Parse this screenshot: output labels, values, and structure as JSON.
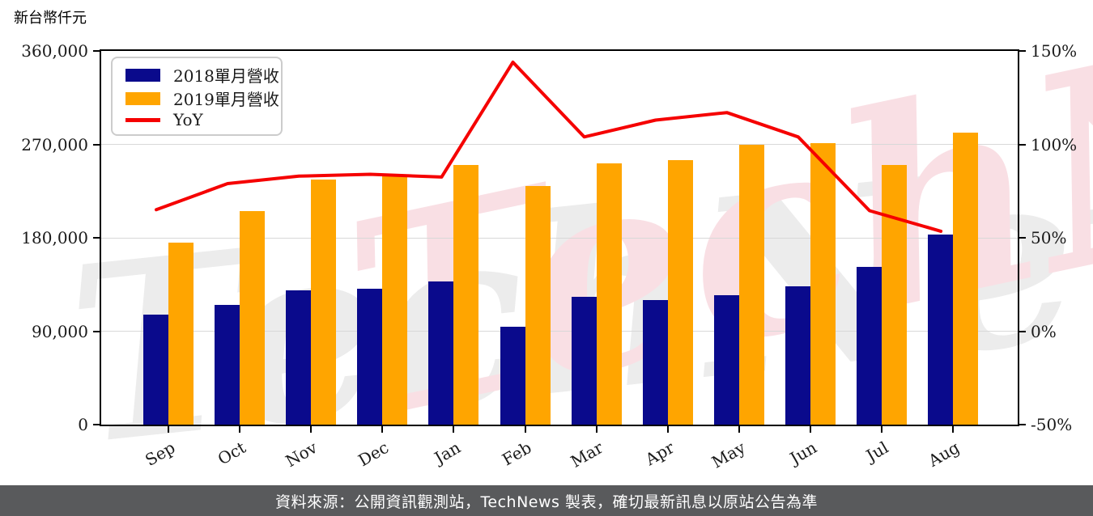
{
  "page": {
    "unit_label": "新台幣仟元",
    "footer": "資料來源：公開資訊觀測站，TechNews 製表，確切最新訊息以原站公告為準",
    "watermarks": [
      {
        "text": "TechNews",
        "color": "#ECECEC"
      },
      {
        "text": "TechNews",
        "color": "#F9DFE4"
      }
    ]
  },
  "chart_data": {
    "type": "bar",
    "title": "新台幣仟元",
    "categories": [
      "Sep",
      "Oct",
      "Nov",
      "Dec",
      "Jan",
      "Feb",
      "Mar",
      "Apr",
      "May",
      "Jun",
      "Jul",
      "Aug"
    ],
    "series": [
      {
        "key": "2018",
        "name": "2018單月營收",
        "type": "bar",
        "axis": "left",
        "color": "#0A0A8C",
        "values": [
          106000,
          115000,
          129500,
          131000,
          138000,
          94500,
          123500,
          120000,
          125000,
          133500,
          152000,
          183500
        ]
      },
      {
        "key": "2019",
        "name": "2019單月營收",
        "type": "bar",
        "axis": "left",
        "color": "#FFA500",
        "values": [
          175000,
          206000,
          236000,
          240500,
          250000,
          230000,
          252000,
          254500,
          270000,
          271500,
          250000,
          281500
        ]
      },
      {
        "key": "yoy",
        "name": "YoY",
        "type": "line",
        "axis": "right",
        "color": "#F50000",
        "unit": "%",
        "values": [
          65,
          79,
          83,
          84,
          82.5,
          144,
          104,
          113,
          117,
          104,
          64.5,
          53.5
        ]
      }
    ],
    "left_axis": {
      "min": 0,
      "max": 360000,
      "step": 90000,
      "tick_labels": [
        "0",
        "90,000",
        "180,000",
        "270,000",
        "360,000"
      ]
    },
    "right_axis": {
      "min": -50,
      "max": 150,
      "step": 50,
      "tick_labels": [
        "-50%",
        "0%",
        "50%",
        "100%",
        "150%"
      ]
    },
    "legend_position": "upper left",
    "grid": true
  }
}
